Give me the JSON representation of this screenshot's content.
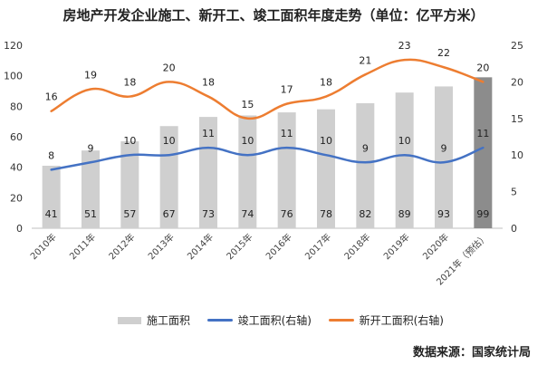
{
  "chart_data": {
    "type": "bar",
    "title": "房地产开发企业施工、新开工、竣工面积年度走势（单位：亿平方米）",
    "categories": [
      "2010年",
      "2011年",
      "2012年",
      "2013年",
      "2014年",
      "2015年",
      "2016年",
      "2017年",
      "2018年",
      "2019年",
      "2020年",
      "2021年（预估）"
    ],
    "y_left": {
      "min": 0,
      "max": 120,
      "ticks": [
        "0",
        "20",
        "40",
        "60",
        "80",
        "100",
        "120"
      ]
    },
    "y_right": {
      "min": 0,
      "max": 25,
      "ticks": [
        "0",
        "5",
        "10",
        "15",
        "20",
        "25"
      ]
    },
    "series": [
      {
        "name": "施工面积",
        "kind": "bar",
        "axis": "left",
        "color": "#cfcfcf",
        "highlight_color": "#8c8c8c",
        "values": [
          41,
          51,
          57,
          67,
          73,
          74,
          76,
          78,
          82,
          89,
          93,
          99
        ],
        "labels": [
          "41",
          "51",
          "57",
          "67",
          "73",
          "74",
          "76",
          "78",
          "82",
          "89",
          "93",
          "99"
        ]
      },
      {
        "name": "竣工面积(右轴)",
        "kind": "line",
        "axis": "right",
        "color": "#4472c4",
        "values": [
          8,
          9,
          10,
          10,
          11,
          10,
          11,
          10,
          9,
          10,
          9,
          11
        ],
        "labels": [
          "8",
          "9",
          "10",
          "10",
          "11",
          "10",
          "11",
          "10",
          "9",
          "10",
          "9",
          "11"
        ]
      },
      {
        "name": "新开工面积(右轴)",
        "kind": "line",
        "axis": "right",
        "color": "#ed7d31",
        "values": [
          16,
          19,
          18,
          20,
          18,
          15,
          17,
          18,
          21,
          23,
          22,
          20
        ],
        "labels": [
          "16",
          "19",
          "18",
          "20",
          "18",
          "15",
          "17",
          "18",
          "21",
          "23",
          "22",
          "20"
        ]
      }
    ],
    "legend": {
      "position": "bottom"
    },
    "grid": false
  },
  "source": "数据来源：国家统计局"
}
